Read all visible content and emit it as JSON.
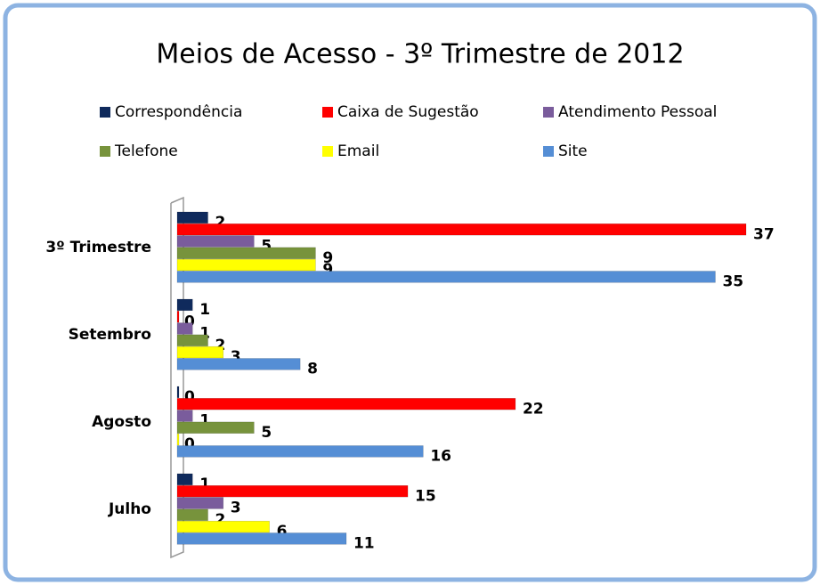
{
  "chart_data": {
    "type": "hbar",
    "title": "Meios de Acesso - 3º Trimestre de 2012",
    "categories": [
      "3º Trimestre",
      "Setembro",
      "Agosto",
      "Julho"
    ],
    "series": [
      {
        "name": "Correspondência",
        "color": "#0f2a5c",
        "values": [
          2,
          1,
          0,
          1
        ]
      },
      {
        "name": "Caixa de Sugestão",
        "color": "#ff0000",
        "values": [
          37,
          0,
          22,
          15
        ]
      },
      {
        "name": "Atendimento Pessoal",
        "color": "#7a5c9c",
        "values": [
          5,
          1,
          1,
          3
        ]
      },
      {
        "name": "Telefone",
        "color": "#77933c",
        "values": [
          9,
          2,
          5,
          2
        ]
      },
      {
        "name": "Email",
        "color": "#ffff00",
        "values": [
          9,
          3,
          0,
          6
        ]
      },
      {
        "name": "Site",
        "color": "#558ed5",
        "values": [
          35,
          8,
          16,
          11
        ]
      }
    ],
    "xlim": [
      0,
      37
    ],
    "legend": "top"
  }
}
